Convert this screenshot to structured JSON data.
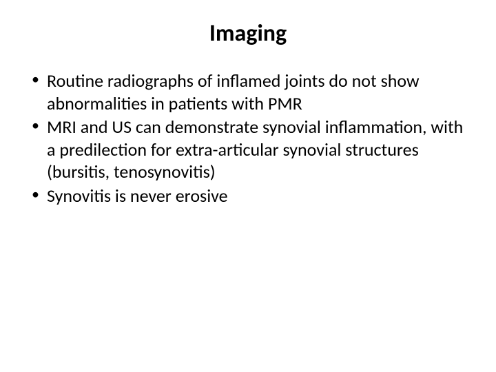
{
  "slide": {
    "title": "Imaging",
    "bullets": [
      " Routine radiographs of inflamed joints do not show abnormalities in patients with PMR",
      " MRI and US can demonstrate synovial inflammation, with a predilection for extra-articular synovial structures (bursitis, tenosynovitis)",
      "Synovitis is never erosive"
    ],
    "title_fontsize": 34,
    "body_fontsize": 26,
    "text_color": "#000000",
    "background_color": "#ffffff"
  }
}
